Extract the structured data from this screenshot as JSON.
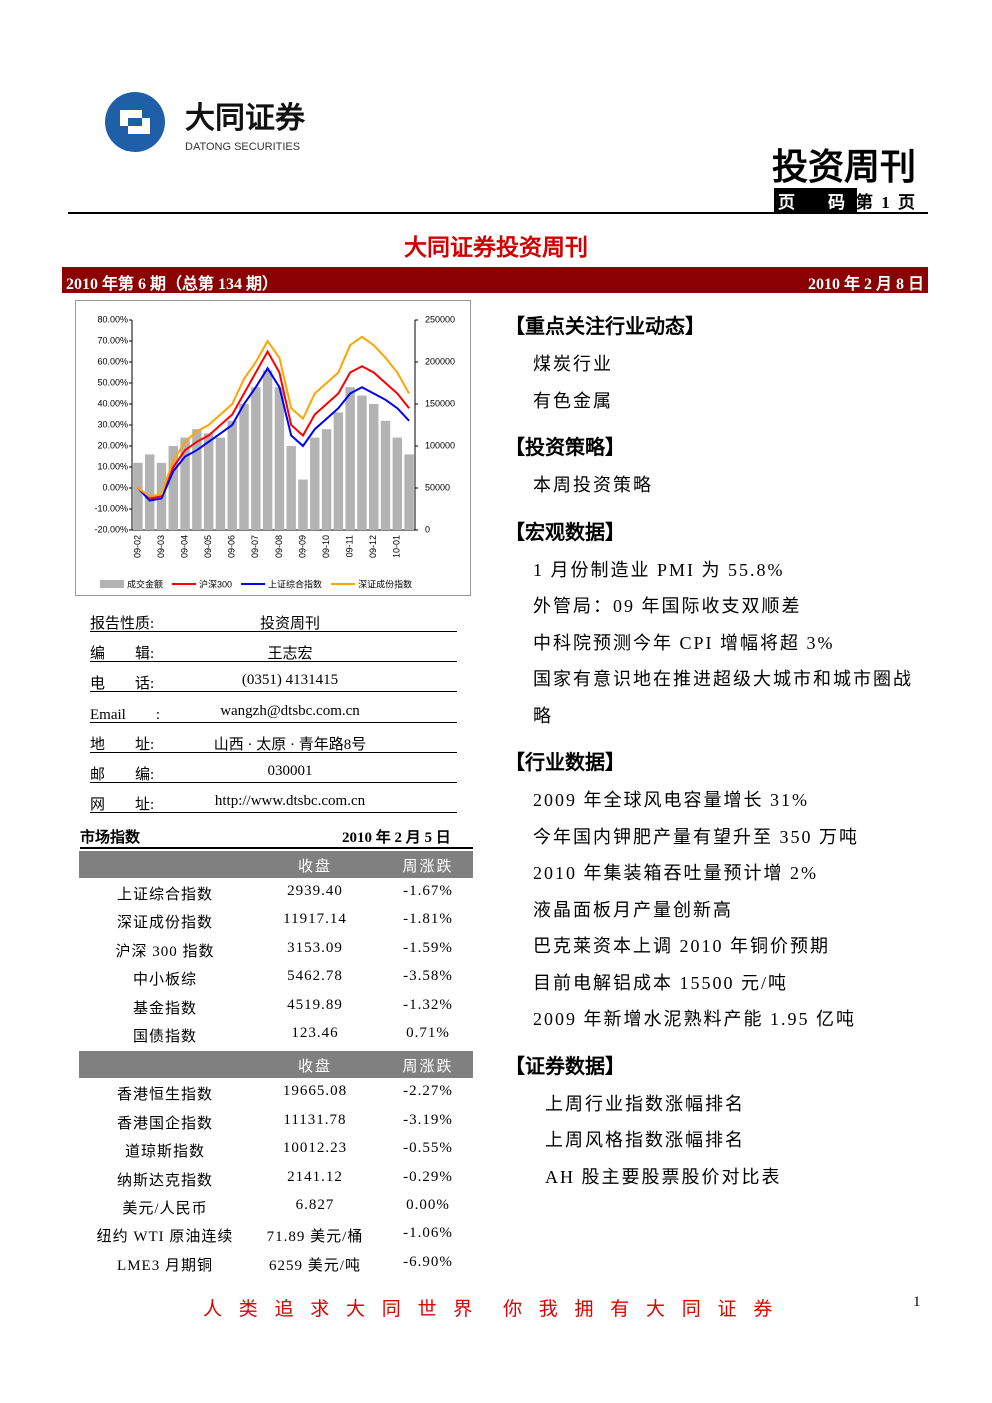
{
  "header": {
    "logo_cn": "大同证券",
    "logo_en": "DATONG SECURITIES",
    "publication": "投资周刊",
    "page_label": "页　码",
    "page_no": "第 1 页"
  },
  "title": "大同证券投资周刊",
  "issue_bar": {
    "issue": "2010 年第 6 期（总第 134 期）",
    "date": "2010 年 2 月 8 日"
  },
  "chart": {
    "type": "line",
    "categories": [
      "09-02",
      null,
      "09-03",
      null,
      "09-04",
      null,
      "09-05",
      null,
      "09-06",
      null,
      "09-07",
      null,
      "09-08",
      null,
      "09-09",
      null,
      "09-10",
      null,
      "09-11",
      null,
      "09-12",
      null,
      "10-01",
      null
    ],
    "series": [
      {
        "name": "成交金额",
        "type": "bar",
        "axis": "y2",
        "color": "#b3b3b3",
        "values": [
          80000,
          90000,
          80000,
          100000,
          110000,
          120000,
          115000,
          110000,
          130000,
          150000,
          170000,
          190000,
          170000,
          100000,
          60000,
          110000,
          120000,
          140000,
          170000,
          160000,
          150000,
          130000,
          110000,
          90000
        ]
      },
      {
        "name": "沪深300",
        "color": "#ff0000",
        "values": [
          0,
          -5,
          -4,
          10,
          18,
          22,
          25,
          30,
          35,
          45,
          55,
          65,
          55,
          30,
          25,
          35,
          40,
          45,
          55,
          58,
          55,
          50,
          45,
          38
        ]
      },
      {
        "name": "上证综合指数",
        "color": "#0000ff",
        "values": [
          0,
          -6,
          -5,
          8,
          15,
          18,
          22,
          26,
          30,
          40,
          48,
          57,
          48,
          25,
          20,
          28,
          33,
          38,
          45,
          48,
          45,
          42,
          38,
          32
        ]
      },
      {
        "name": "深证成份指数",
        "color": "#ffa500",
        "values": [
          0,
          -4,
          -3,
          13,
          22,
          27,
          30,
          35,
          40,
          52,
          60,
          70,
          62,
          38,
          33,
          45,
          50,
          55,
          68,
          72,
          68,
          62,
          55,
          45
        ]
      }
    ],
    "ylim": [
      -20,
      80
    ],
    "yticks": [
      {
        "value": -20,
        "label": "-20.00%"
      },
      {
        "value": -10,
        "label": "-10.00%"
      },
      {
        "value": 0,
        "label": "0.00%"
      },
      {
        "value": 10,
        "label": "10.00%"
      },
      {
        "value": 20,
        "label": "20.00%"
      },
      {
        "value": 30,
        "label": "30.00%"
      },
      {
        "value": 40,
        "label": "40.00%"
      },
      {
        "value": 50,
        "label": "50.00%"
      },
      {
        "value": 60,
        "label": "60.00%"
      },
      {
        "value": 70,
        "label": "70.00%"
      },
      {
        "value": 80,
        "label": "80.00%"
      }
    ],
    "y2lim": [
      0,
      250000
    ],
    "y2ticks": [
      0,
      50000,
      100000,
      150000,
      200000,
      250000
    ]
  },
  "info": [
    {
      "label": "报告性质:",
      "value": "投资周刊"
    },
    {
      "label": "编　　辑:",
      "value": "王志宏"
    },
    {
      "label": "电　　话:",
      "value": "(0351) 4131415"
    },
    {
      "label": "Email　　:",
      "value": "wangzh@dtsbc.com.cn"
    },
    {
      "label": "地　　址:",
      "value": "山西 · 太原 · 青年路8号"
    },
    {
      "label": "邮　　编:",
      "value": "030001"
    },
    {
      "label": "网　　址:",
      "value": "http://www.dtsbc.com.cn"
    }
  ],
  "market": {
    "title": "市场指数",
    "date": "2010 年 2 月 5 日",
    "tables": [
      {
        "columns": [
          "收盘",
          "周涨跌"
        ],
        "rows": [
          [
            "上证综合指数",
            "2939.40",
            "-1.67%"
          ],
          [
            "深证成份指数",
            "11917.14",
            "-1.81%"
          ],
          [
            "沪深 300 指数",
            "3153.09",
            "-1.59%"
          ],
          [
            "中小板综",
            "5462.78",
            "-3.58%"
          ],
          [
            "基金指数",
            "4519.89",
            "-1.32%"
          ],
          [
            "国债指数",
            "123.46",
            "0.71%"
          ]
        ]
      },
      {
        "columns": [
          "收盘",
          "周涨跌"
        ],
        "rows": [
          [
            "香港恒生指数",
            "19665.08",
            "-2.27%"
          ],
          [
            "香港国企指数",
            "11131.78",
            "-3.19%"
          ],
          [
            "道琼斯指数",
            "10012.23",
            "-0.55%"
          ],
          [
            "纳斯达克指数",
            "2141.12",
            "-0.29%"
          ],
          [
            "美元/人民币",
            "6.827",
            "0.00%"
          ],
          [
            "纽约 WTI 原油连续",
            "71.89 美元/桶",
            "-1.06%"
          ],
          [
            "LME3 月期铜",
            "6259 美元/吨",
            "-6.90%"
          ]
        ]
      }
    ]
  },
  "sections": [
    {
      "heading": "【重点关注行业动态】",
      "items": [
        "煤炭行业",
        "有色金属"
      ]
    },
    {
      "heading": "【投资策略】",
      "items": [
        "本周投资策略"
      ]
    },
    {
      "heading": "【宏观数据】",
      "items": [
        "1 月份制造业 PMI 为 55.8%",
        "外管局：09 年国际收支双顺差",
        "中科院预测今年 CPI 增幅将超 3%",
        "国家有意识地在推进超级大城市和城市圈战略"
      ]
    },
    {
      "heading": "【行业数据】",
      "items": [
        "2009 年全球风电容量增长 31%",
        "今年国内钾肥产量有望升至 350 万吨",
        "2010 年集装箱吞吐量预计增 2%",
        "液晶面板月产量创新高",
        "巴克莱资本上调 2010 年铜价预期",
        "目前电解铝成本 15500 元/吨",
        "2009 年新增水泥熟料产能 1.95 亿吨"
      ]
    },
    {
      "heading": "【证券数据】",
      "items": [
        "上周行业指数涨幅排名",
        "上周风格指数涨幅排名",
        "AH 股主要股票股价对比表"
      ]
    }
  ],
  "footer": {
    "slogan1": "人 类 追 求 大 同 世 界",
    "slogan2": "你 我 拥 有 大 同 证 券",
    "page": "1"
  }
}
